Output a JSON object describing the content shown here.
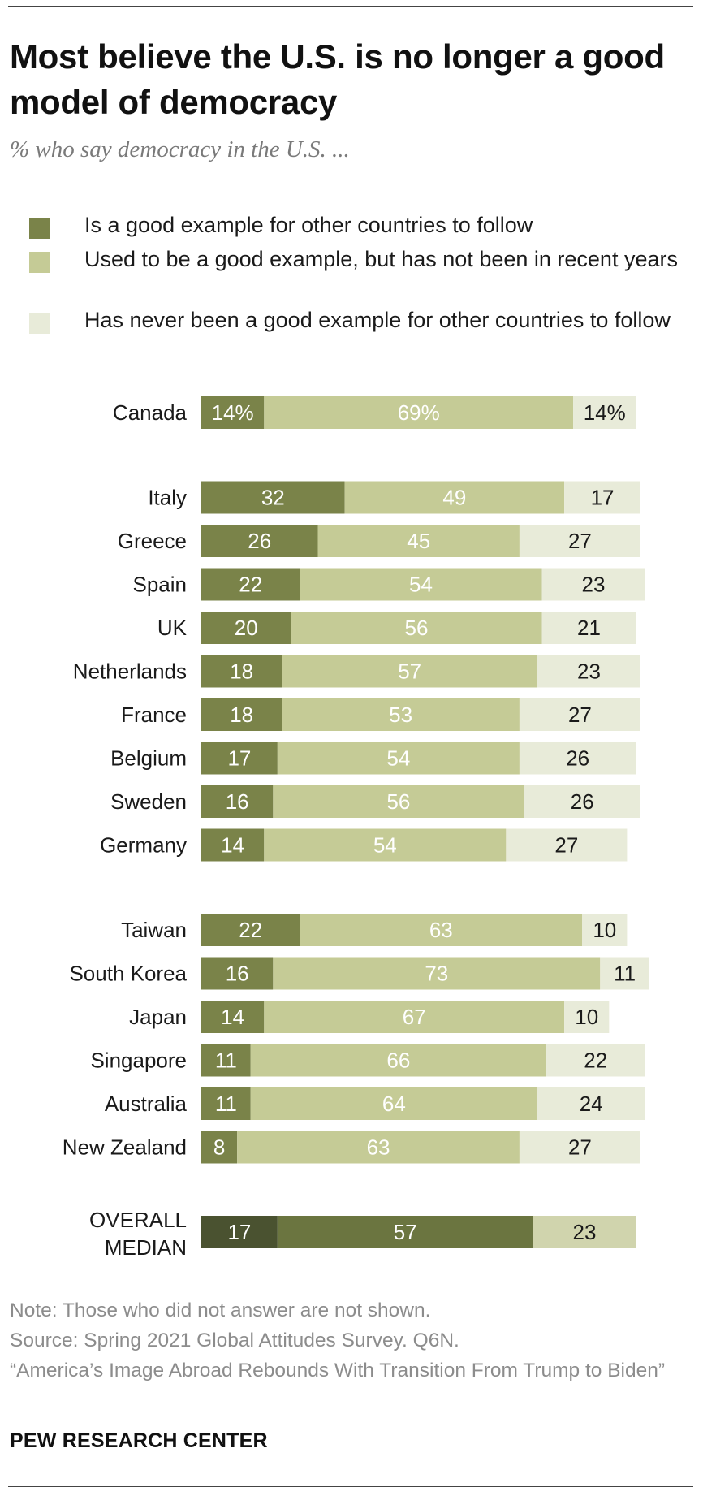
{
  "title": "Most believe the U.S. is no longer a good model of democracy",
  "subtitle": "% who say democracy in the U.S. ...",
  "legend": [
    {
      "label": "Is a good example for other countries to follow",
      "color": "#7a8349"
    },
    {
      "label": "Used to be a good example, but has not been in recent years",
      "color": "#c5cb96"
    },
    {
      "label": "Has never been a good example for other countries to follow",
      "color": "#e8ebd9"
    }
  ],
  "chart_data": {
    "type": "bar",
    "orientation": "horizontal",
    "stacked": true,
    "xlim": [
      0,
      100
    ],
    "series": [
      {
        "name": "Is a good example for other countries to follow",
        "color": "#7a8349"
      },
      {
        "name": "Used to be a good example, but has not been in recent years",
        "color": "#c5cb96"
      },
      {
        "name": "Has never been a good example for other countries to follow",
        "color": "#e8ebd9"
      }
    ],
    "groups": [
      {
        "rows": [
          {
            "category": "Canada",
            "values": [
              14,
              69,
              14
            ],
            "labels": [
              "14%",
              "69%",
              "14%"
            ]
          }
        ]
      },
      {
        "rows": [
          {
            "category": "Italy",
            "values": [
              32,
              49,
              17
            ],
            "labels": [
              "32",
              "49",
              "17"
            ]
          },
          {
            "category": "Greece",
            "values": [
              26,
              45,
              27
            ],
            "labels": [
              "26",
              "45",
              "27"
            ]
          },
          {
            "category": "Spain",
            "values": [
              22,
              54,
              23
            ],
            "labels": [
              "22",
              "54",
              "23"
            ]
          },
          {
            "category": "UK",
            "values": [
              20,
              56,
              21
            ],
            "labels": [
              "20",
              "56",
              "21"
            ]
          },
          {
            "category": "Netherlands",
            "values": [
              18,
              57,
              23
            ],
            "labels": [
              "18",
              "57",
              "23"
            ]
          },
          {
            "category": "France",
            "values": [
              18,
              53,
              27
            ],
            "labels": [
              "18",
              "53",
              "27"
            ]
          },
          {
            "category": "Belgium",
            "values": [
              17,
              54,
              26
            ],
            "labels": [
              "17",
              "54",
              "26"
            ]
          },
          {
            "category": "Sweden",
            "values": [
              16,
              56,
              26
            ],
            "labels": [
              "16",
              "56",
              "26"
            ]
          },
          {
            "category": "Germany",
            "values": [
              14,
              54,
              27
            ],
            "labels": [
              "14",
              "54",
              "27"
            ]
          }
        ]
      },
      {
        "rows": [
          {
            "category": "Taiwan",
            "values": [
              22,
              63,
              10
            ],
            "labels": [
              "22",
              "63",
              "10"
            ]
          },
          {
            "category": "South Korea",
            "values": [
              16,
              73,
              11
            ],
            "labels": [
              "16",
              "73",
              "11"
            ]
          },
          {
            "category": "Japan",
            "values": [
              14,
              67,
              10
            ],
            "labels": [
              "14",
              "67",
              "10"
            ]
          },
          {
            "category": "Singapore",
            "values": [
              11,
              66,
              22
            ],
            "labels": [
              "11",
              "66",
              "22"
            ]
          },
          {
            "category": "Australia",
            "values": [
              11,
              64,
              24
            ],
            "labels": [
              "11",
              "64",
              "24"
            ]
          },
          {
            "category": "New Zealand",
            "values": [
              8,
              63,
              27
            ],
            "labels": [
              "8",
              "63",
              "27"
            ]
          }
        ]
      },
      {
        "rows": [
          {
            "category": "OVERALL MEDIAN",
            "category_lines": [
              "OVERALL",
              "MEDIAN"
            ],
            "values": [
              17,
              57,
              23
            ],
            "labels": [
              "17",
              "57",
              "23"
            ],
            "median": true
          }
        ]
      }
    ],
    "median_colors": [
      "#4a5230",
      "#6b7540",
      "#d0d4ad"
    ]
  },
  "notes": [
    "Note: Those who did not answer are not shown.",
    "Source: Spring 2021 Global Attitudes Survey. Q6N.",
    "“America’s Image Abroad Rebounds With Transition From Trump to Biden”"
  ],
  "brand": "PEW RESEARCH CENTER"
}
